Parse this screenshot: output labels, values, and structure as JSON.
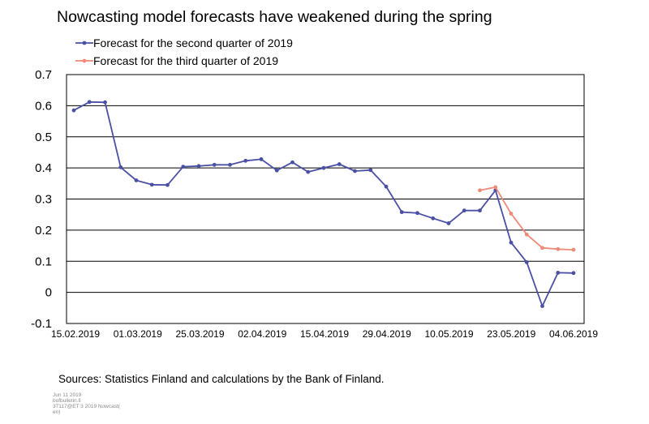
{
  "chart_data": {
    "type": "line",
    "title": "Nowcasting model forecasts have weakened during the spring",
    "xlabel": "",
    "ylabel": "",
    "ylim": [
      -0.1,
      0.7
    ],
    "yticks": [
      "0.7",
      "0.6",
      "0.5",
      "0.4",
      "0.3",
      "0.2",
      "0.1",
      "0",
      "-0.1"
    ],
    "x_tick_labels": [
      "15.02.2019",
      "01.03.2019",
      "25.03.2019",
      "02.04.2019",
      "15.04.2019",
      "29.04.2019",
      "10.05.2019",
      "23.05.2019",
      "04.06.2019"
    ],
    "grid": "horizontal",
    "legend_position": "top",
    "series": [
      {
        "name": "Forecast for the second quarter of 2019",
        "color": "#4a50a4",
        "values": [
          0.585,
          0.612,
          0.611,
          0.402,
          0.36,
          0.346,
          0.345,
          0.404,
          0.406,
          0.41,
          0.41,
          0.423,
          0.428,
          0.392,
          0.418,
          0.387,
          0.4,
          0.412,
          0.39,
          0.393,
          0.34,
          0.258,
          0.255,
          0.238,
          0.222,
          0.263,
          0.263,
          0.328,
          0.16,
          0.097,
          -0.044,
          0.063,
          0.062
        ]
      },
      {
        "name": "Forecast for the third quarter of 2019",
        "color": "#ee8a78",
        "start_index": 26,
        "values": [
          0.328,
          0.338,
          0.253,
          0.186,
          0.143,
          0.139,
          0.137
        ]
      }
    ]
  },
  "source_text": "Sources: Statistics Finland and calculations by the Bank of Finland.",
  "footer_lines": [
    "Jun 11 2019",
    "bofbulletin.fi",
    "37117@ET 3 2019 Nowcast(",
    "en)"
  ]
}
